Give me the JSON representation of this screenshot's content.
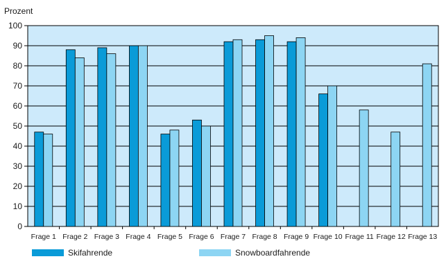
{
  "chart_data": {
    "type": "bar",
    "ylabel": "Prozent",
    "ylim": [
      0,
      100
    ],
    "yticks": [
      0,
      10,
      20,
      30,
      40,
      50,
      60,
      70,
      80,
      90,
      100
    ],
    "grid": true,
    "legend_position": "bottom",
    "categories": [
      "Frage 1",
      "Frage 2",
      "Frage 3",
      "Frage 4",
      "Frage 5",
      "Frage 6",
      "Frage 7",
      "Frage 8",
      "Frage 9",
      "Frage 10",
      "Frage 11",
      "Frage 12",
      "Frage 13"
    ],
    "series": [
      {
        "name": "Skifahrende",
        "color": "#0a9bd8",
        "values": [
          47,
          88,
          89,
          90,
          46,
          53,
          92,
          93,
          92,
          66,
          null,
          null,
          null
        ]
      },
      {
        "name": "Snowboardfahrende",
        "color": "#8dd5f3",
        "values": [
          46,
          84,
          86,
          90,
          48,
          50,
          93,
          95,
          94,
          70,
          58,
          47,
          81
        ]
      }
    ],
    "plot_background": "#cdeafb"
  }
}
